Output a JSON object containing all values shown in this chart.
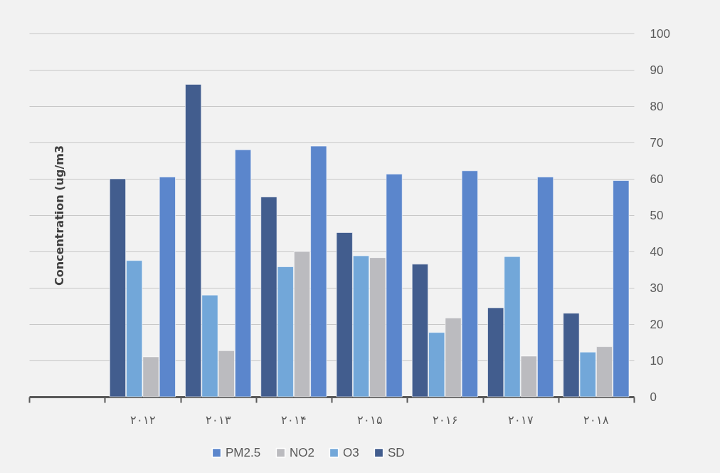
{
  "chart_data": {
    "type": "bar",
    "ylabel": "Concentration (ug/m3",
    "categories": [
      null,
      "۲۰۱۲",
      "۲۰۱۳",
      "۲۰۱۴",
      "۲۰۱۵",
      "۲۰۱۶",
      "۲۰۱۷",
      "۲۰۱۸"
    ],
    "series": [
      {
        "name": "PM2.5",
        "color": "#5b86cc",
        "values": [
          null,
          60.5,
          68,
          69,
          61.3,
          62.2,
          60.5,
          59.5
        ]
      },
      {
        "name": "NO2",
        "color": "#bbbbbf",
        "values": [
          null,
          11,
          12.7,
          40,
          38.3,
          21.7,
          11.2,
          13.8
        ]
      },
      {
        "name": "O3",
        "color": "#72a7d9",
        "values": [
          null,
          37.5,
          28,
          35.8,
          38.8,
          17.7,
          38.6,
          12.3
        ]
      },
      {
        "name": "SD",
        "color": "#425d8e",
        "values": [
          null,
          60,
          86,
          55,
          45.2,
          36.5,
          24.5,
          23
        ]
      }
    ],
    "ylim": [
      0,
      100
    ],
    "yticks": [
      0,
      10,
      20,
      30,
      40,
      50,
      60,
      70,
      80,
      90,
      100
    ],
    "grid": "y",
    "legend": "bottom"
  }
}
